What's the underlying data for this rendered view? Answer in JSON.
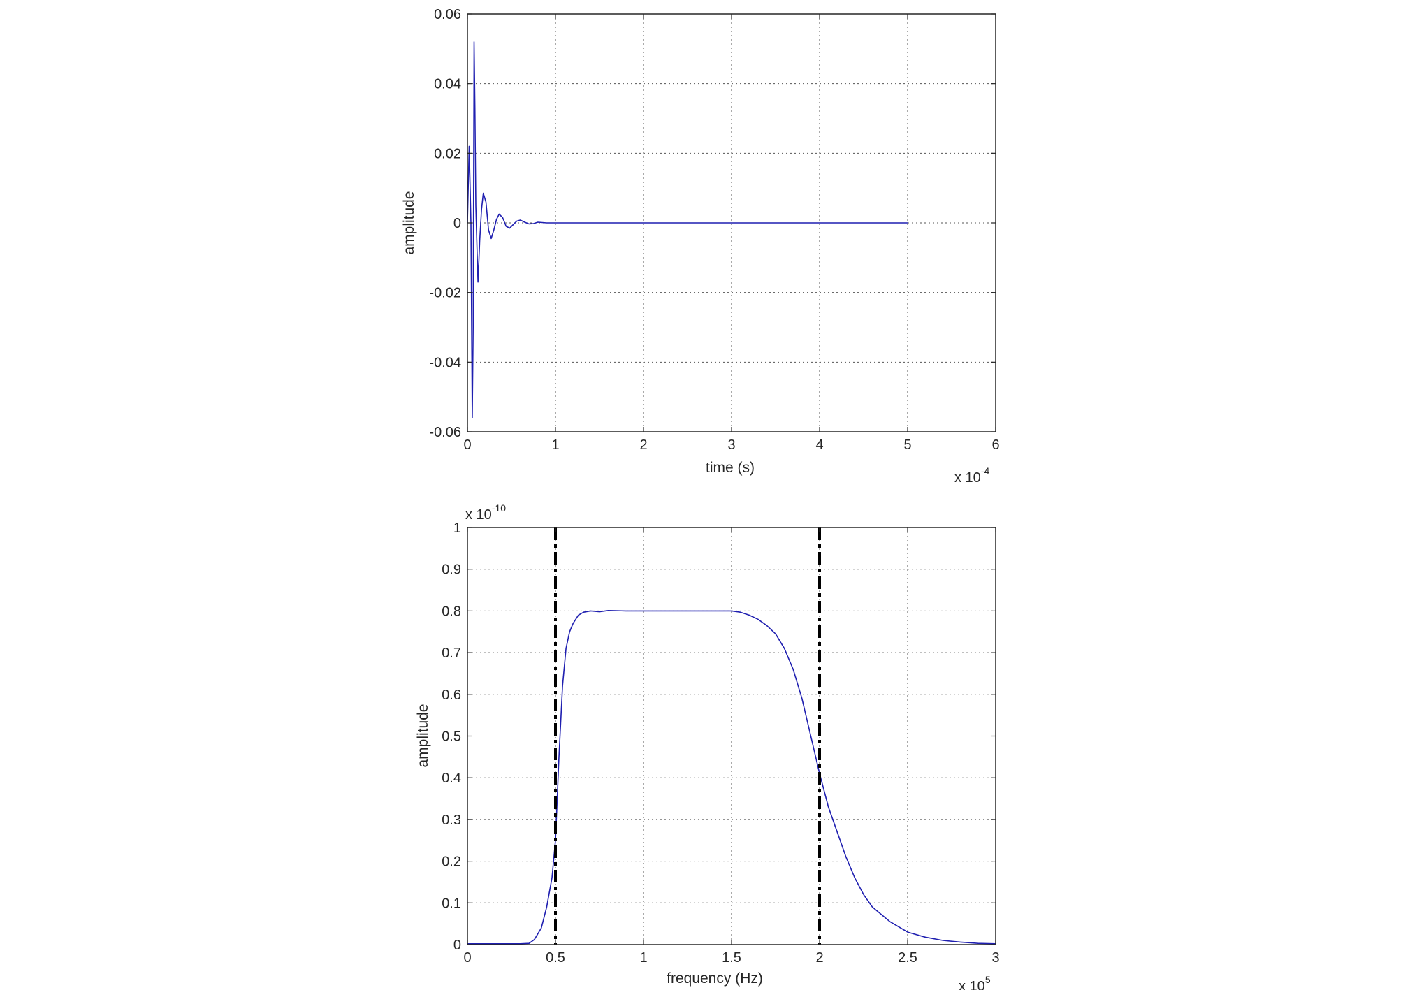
{
  "chart_data": [
    {
      "type": "line",
      "xlabel": "time (s)",
      "ylabel": "amplitude",
      "x_multiplier": {
        "base": "x 10",
        "exponent": "-4"
      },
      "xlim": [
        0,
        6
      ],
      "ylim": [
        -0.06,
        0.06
      ],
      "xticks": [
        0,
        1,
        2,
        3,
        4,
        5,
        6
      ],
      "xtick_labels": [
        "0",
        "1",
        "2",
        "3",
        "4",
        "5",
        "6"
      ],
      "yticks": [
        0.06,
        0.04,
        0.02,
        0,
        -0.02,
        -0.04,
        -0.06
      ],
      "ytick_labels": [
        "0.06",
        "0.04",
        "0.02",
        "0",
        "-0.02",
        "-0.04",
        "-0.06"
      ],
      "grid": true,
      "line_color": "#1f1fb0",
      "series": [
        {
          "x": [
            0,
            0.02,
            0.04,
            0.055,
            0.065,
            0.075,
            0.085,
            0.095,
            0.105,
            0.12,
            0.14,
            0.16,
            0.18,
            0.21,
            0.24,
            0.27,
            0.3,
            0.33,
            0.36,
            0.4,
            0.44,
            0.48,
            0.52,
            0.56,
            0.6,
            0.65,
            0.7,
            0.75,
            0.8,
            0.85,
            0.9,
            1.0,
            2.0,
            3.0,
            4.0,
            5.0
          ],
          "y": [
            0.0,
            0.022,
            0.0,
            -0.056,
            -0.03,
            0.052,
            0.033,
            0.005,
            -0.004,
            -0.017,
            -0.005,
            0.004,
            0.0085,
            0.006,
            -0.002,
            -0.0045,
            -0.002,
            0.001,
            0.0025,
            0.0015,
            -0.001,
            -0.0015,
            -0.0005,
            0.0005,
            0.0008,
            0.0002,
            -0.0003,
            -0.0002,
            0.0002,
            0.0001,
            0.0,
            0.0,
            0.0,
            0.0,
            0.0,
            0.0
          ]
        }
      ]
    },
    {
      "type": "line",
      "xlabel": "frequency (Hz)",
      "ylabel": "amplitude",
      "x_multiplier": {
        "base": "x 10",
        "exponent": "5"
      },
      "y_multiplier": {
        "base": "x 10",
        "exponent": "-10"
      },
      "xlim": [
        0,
        3
      ],
      "ylim": [
        0,
        1
      ],
      "xticks": [
        0,
        0.5,
        1,
        1.5,
        2,
        2.5,
        3
      ],
      "xtick_labels": [
        "0",
        "0.5",
        "1",
        "1.5",
        "2",
        "2.5",
        "3"
      ],
      "yticks": [
        1,
        0.9,
        0.8,
        0.7,
        0.6,
        0.5,
        0.4,
        0.3,
        0.2,
        0.1,
        0
      ],
      "ytick_labels": [
        "1",
        "0.9",
        "0.8",
        "0.7",
        "0.6",
        "0.5",
        "0.4",
        "0.3",
        "0.2",
        "0.1",
        "0"
      ],
      "grid": true,
      "line_color": "#1f1fb0",
      "vlines": [
        0.5,
        2.0
      ],
      "vline_color": "#000000",
      "series": [
        {
          "x": [
            0,
            0.3,
            0.35,
            0.38,
            0.42,
            0.45,
            0.48,
            0.5,
            0.52,
            0.54,
            0.56,
            0.58,
            0.6,
            0.63,
            0.66,
            0.7,
            0.75,
            0.8,
            0.9,
            1.0,
            1.2,
            1.4,
            1.5,
            1.55,
            1.6,
            1.65,
            1.7,
            1.75,
            1.8,
            1.85,
            1.9,
            1.95,
            2.0,
            2.05,
            2.1,
            2.15,
            2.2,
            2.25,
            2.3,
            2.4,
            2.5,
            2.6,
            2.7,
            2.8,
            2.9,
            3.0
          ],
          "y": [
            0.002,
            0.002,
            0.003,
            0.012,
            0.04,
            0.09,
            0.16,
            0.25,
            0.45,
            0.62,
            0.71,
            0.75,
            0.77,
            0.79,
            0.797,
            0.8,
            0.798,
            0.801,
            0.8,
            0.8,
            0.8,
            0.8,
            0.8,
            0.797,
            0.79,
            0.78,
            0.765,
            0.745,
            0.71,
            0.66,
            0.59,
            0.5,
            0.41,
            0.33,
            0.27,
            0.21,
            0.16,
            0.12,
            0.09,
            0.055,
            0.03,
            0.018,
            0.01,
            0.006,
            0.003,
            0.002
          ]
        }
      ]
    }
  ]
}
